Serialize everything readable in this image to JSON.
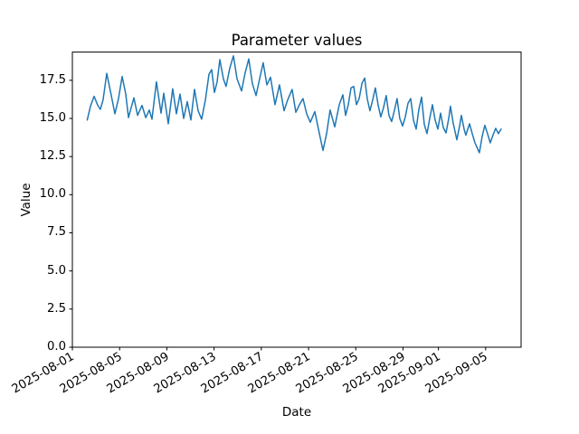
{
  "chart_data": {
    "type": "line",
    "title": "Parameter values",
    "xlabel": "Date",
    "ylabel": "Value",
    "legend": "none",
    "grid": false,
    "line_color": "#1f77b4",
    "axes_color": "#000000",
    "background_color": "#ffffff",
    "x_unit": "days since 2025-08-01",
    "xlim_days": [
      0,
      38
    ],
    "ylim": [
      0,
      19.35
    ],
    "xticks": [
      {
        "label": "2025-08-01",
        "day": 0
      },
      {
        "label": "2025-08-05",
        "day": 4
      },
      {
        "label": "2025-08-09",
        "day": 8
      },
      {
        "label": "2025-08-13",
        "day": 12
      },
      {
        "label": "2025-08-17",
        "day": 16
      },
      {
        "label": "2025-08-21",
        "day": 20
      },
      {
        "label": "2025-08-25",
        "day": 24
      },
      {
        "label": "2025-08-29",
        "day": 28
      },
      {
        "label": "2025-09-01",
        "day": 31
      },
      {
        "label": "2025-09-05",
        "day": 35
      }
    ],
    "yticks": [
      {
        "label": "0.0",
        "value": 0
      },
      {
        "label": "2.5",
        "value": 2.5
      },
      {
        "label": "5.0",
        "value": 5
      },
      {
        "label": "7.5",
        "value": 7.5
      },
      {
        "label": "10.0",
        "value": 10
      },
      {
        "label": "12.5",
        "value": 12.5
      },
      {
        "label": "15.0",
        "value": 15
      },
      {
        "label": "17.5",
        "value": 17.5
      }
    ],
    "points": [
      [
        1.26,
        14.9
      ],
      [
        1.53,
        15.8
      ],
      [
        1.84,
        16.45
      ],
      [
        2.15,
        15.85
      ],
      [
        2.37,
        15.6
      ],
      [
        2.6,
        16.2
      ],
      [
        2.91,
        17.95
      ],
      [
        3.22,
        16.8
      ],
      [
        3.6,
        15.3
      ],
      [
        3.91,
        16.3
      ],
      [
        4.21,
        17.75
      ],
      [
        4.52,
        16.6
      ],
      [
        4.75,
        15.05
      ],
      [
        5.21,
        16.35
      ],
      [
        5.52,
        15.2
      ],
      [
        5.9,
        15.85
      ],
      [
        6.21,
        15.05
      ],
      [
        6.51,
        15.55
      ],
      [
        6.74,
        14.95
      ],
      [
        7.12,
        17.4
      ],
      [
        7.51,
        15.35
      ],
      [
        7.74,
        16.65
      ],
      [
        8.12,
        14.65
      ],
      [
        8.5,
        16.95
      ],
      [
        8.81,
        15.3
      ],
      [
        9.12,
        16.6
      ],
      [
        9.42,
        15.0
      ],
      [
        9.73,
        16.1
      ],
      [
        10.04,
        14.9
      ],
      [
        10.34,
        16.9
      ],
      [
        10.65,
        15.5
      ],
      [
        10.95,
        14.95
      ],
      [
        11.26,
        16.2
      ],
      [
        11.57,
        17.9
      ],
      [
        11.8,
        18.2
      ],
      [
        12.03,
        16.7
      ],
      [
        12.26,
        17.4
      ],
      [
        12.49,
        18.85
      ],
      [
        12.79,
        17.6
      ],
      [
        13.02,
        17.1
      ],
      [
        13.33,
        18.3
      ],
      [
        13.64,
        19.1
      ],
      [
        13.94,
        17.6
      ],
      [
        14.33,
        16.8
      ],
      [
        14.63,
        18.0
      ],
      [
        14.94,
        18.9
      ],
      [
        15.24,
        17.3
      ],
      [
        15.55,
        16.5
      ],
      [
        15.86,
        17.6
      ],
      [
        16.16,
        18.65
      ],
      [
        16.47,
        17.2
      ],
      [
        16.78,
        17.7
      ],
      [
        17.16,
        15.9
      ],
      [
        17.54,
        17.2
      ],
      [
        17.93,
        15.5
      ],
      [
        18.23,
        16.2
      ],
      [
        18.61,
        16.9
      ],
      [
        18.92,
        15.4
      ],
      [
        19.23,
        15.9
      ],
      [
        19.53,
        16.3
      ],
      [
        19.84,
        15.3
      ],
      [
        20.15,
        14.75
      ],
      [
        20.53,
        15.45
      ],
      [
        20.84,
        14.3
      ],
      [
        21.22,
        12.9
      ],
      [
        21.53,
        14.0
      ],
      [
        21.83,
        15.55
      ],
      [
        22.22,
        14.45
      ],
      [
        22.6,
        15.9
      ],
      [
        22.91,
        16.55
      ],
      [
        23.14,
        15.2
      ],
      [
        23.37,
        15.9
      ],
      [
        23.6,
        17.0
      ],
      [
        23.83,
        17.1
      ],
      [
        24.06,
        15.9
      ],
      [
        24.29,
        16.3
      ],
      [
        24.52,
        17.3
      ],
      [
        24.75,
        17.65
      ],
      [
        24.97,
        16.3
      ],
      [
        25.2,
        15.5
      ],
      [
        25.43,
        16.2
      ],
      [
        25.66,
        17.0
      ],
      [
        25.89,
        15.9
      ],
      [
        26.12,
        15.1
      ],
      [
        26.35,
        15.7
      ],
      [
        26.58,
        16.5
      ],
      [
        26.81,
        15.2
      ],
      [
        27.04,
        14.8
      ],
      [
        27.27,
        15.5
      ],
      [
        27.5,
        16.3
      ],
      [
        27.73,
        15.0
      ],
      [
        27.96,
        14.5
      ],
      [
        28.19,
        15.1
      ],
      [
        28.42,
        16.0
      ],
      [
        28.65,
        16.3
      ],
      [
        28.88,
        14.9
      ],
      [
        29.11,
        14.3
      ],
      [
        29.34,
        15.6
      ],
      [
        29.57,
        16.4
      ],
      [
        29.8,
        14.6
      ],
      [
        30.03,
        14.0
      ],
      [
        30.26,
        15.0
      ],
      [
        30.49,
        15.9
      ],
      [
        30.72,
        14.9
      ],
      [
        30.95,
        14.3
      ],
      [
        31.18,
        15.35
      ],
      [
        31.41,
        14.4
      ],
      [
        31.64,
        14.05
      ],
      [
        31.87,
        15.0
      ],
      [
        32.02,
        15.8
      ],
      [
        32.25,
        14.7
      ],
      [
        32.56,
        13.6
      ],
      [
        32.79,
        14.5
      ],
      [
        32.94,
        15.2
      ],
      [
        33.17,
        14.3
      ],
      [
        33.32,
        13.9
      ],
      [
        33.63,
        14.65
      ],
      [
        33.86,
        14.0
      ],
      [
        34.09,
        13.4
      ],
      [
        34.32,
        13.0
      ],
      [
        34.47,
        12.75
      ],
      [
        34.7,
        13.8
      ],
      [
        34.93,
        14.55
      ],
      [
        35.16,
        14.0
      ],
      [
        35.39,
        13.4
      ],
      [
        35.62,
        13.9
      ],
      [
        35.85,
        14.35
      ],
      [
        36.08,
        14.0
      ],
      [
        36.31,
        14.3
      ]
    ]
  }
}
